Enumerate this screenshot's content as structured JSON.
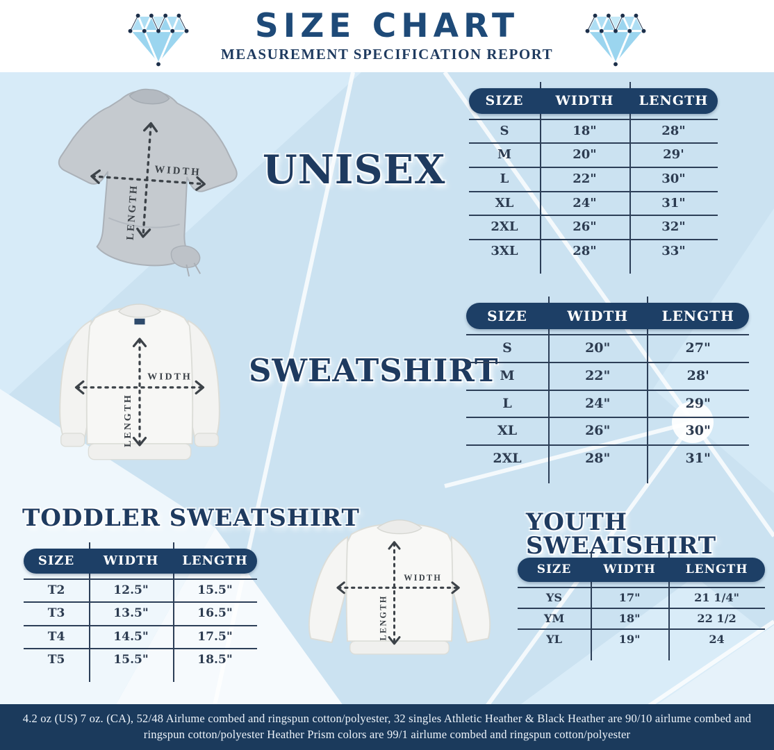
{
  "header": {
    "title": "SIZE CHART",
    "subtitle": "MEASUREMENT SPECIFICATION REPORT"
  },
  "icons": {
    "left": "diamond-icon",
    "right": "diamond-icon"
  },
  "labels": {
    "width": "WIDTH",
    "length": "LENGTH"
  },
  "sections": {
    "unisex": {
      "heading": "UNISEX",
      "table": {
        "columns": [
          "SIZE",
          "WIDTH",
          "LENGTH"
        ],
        "rows": [
          [
            "S",
            "18\"",
            "28\""
          ],
          [
            "M",
            "20\"",
            "29'"
          ],
          [
            "L",
            "22\"",
            "30\""
          ],
          [
            "XL",
            "24\"",
            "31\""
          ],
          [
            "2XL",
            "26\"",
            "32\""
          ],
          [
            "3XL",
            "28\"",
            "33\""
          ]
        ]
      }
    },
    "sweatshirt": {
      "heading": "SWEATSHIRT",
      "table": {
        "columns": [
          "SIZE",
          "WIDTH",
          "LENGTH"
        ],
        "rows": [
          [
            "S",
            "20\"",
            "27\""
          ],
          [
            "M",
            "22\"",
            "28'"
          ],
          [
            "L",
            "24\"",
            "29\""
          ],
          [
            "XL",
            "26\"",
            "30\""
          ],
          [
            "2XL",
            "28\"",
            "31\""
          ]
        ]
      }
    },
    "toddler": {
      "heading": "TODDLER SWEATSHIRT",
      "table": {
        "columns": [
          "SIZE",
          "WIDTH",
          "LENGTH"
        ],
        "rows": [
          [
            "T2",
            "12.5\"",
            "15.5\""
          ],
          [
            "T3",
            "13.5\"",
            "16.5\""
          ],
          [
            "T4",
            "14.5\"",
            "17.5\""
          ],
          [
            "T5",
            "15.5\"",
            "18.5\""
          ]
        ]
      }
    },
    "youth": {
      "heading": "YOUTH SWEATSHIRT",
      "table": {
        "columns": [
          "SIZE",
          "WIDTH",
          "LENGTH"
        ],
        "rows": [
          [
            "YS",
            "17\"",
            "21 1/4\""
          ],
          [
            "YM",
            "18\"",
            "22 1/2"
          ],
          [
            "YL",
            "19\"",
            "24"
          ]
        ]
      }
    }
  },
  "footer": {
    "line1": "4.2 oz (US) 7 oz. (CA), 52/48 Airlume combed and ringspun cotton/polyester, 32 singles Athletic Heather & Black Heather are 90/10 airlume combed and",
    "line2": "ringspun cotton/polyester Heather Prism colors are 99/1 airlume combed and ringspun cotton/polyester"
  },
  "colors": {
    "page_blue": "#cbe2f1",
    "navy_heading": "#1e3a5f",
    "title_navy": "#1e4a78",
    "table_header_bg": "#1d3f66",
    "footer_bg": "#1b3a5c",
    "diamond_blue": "#9bd5ef",
    "tee_grey": "#c5cacf",
    "garment_white": "#f7f7f5"
  }
}
